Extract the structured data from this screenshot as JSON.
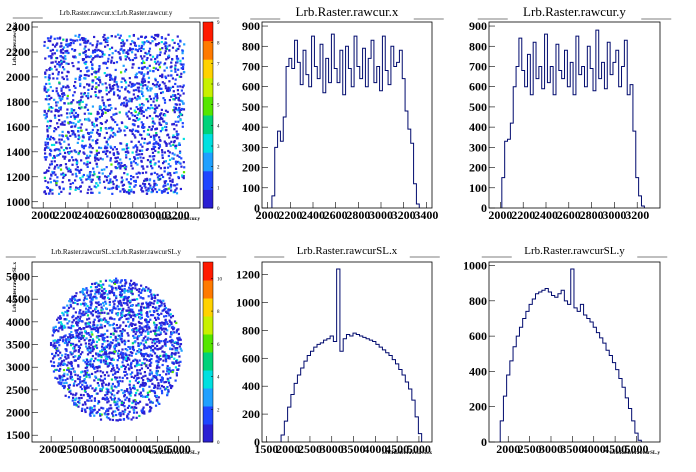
{
  "chart_data": [
    {
      "type": "heatmap",
      "title": "Lrb.Raster.rawcur.x:Lrb.Raster.rawcur.y",
      "xlabel": "Lrb.Raster.rawcur.y",
      "ylabel": "Lrb.Raster.rawcur.x",
      "x_ticks": [
        "2000",
        "2200",
        "2400",
        "2600",
        "2800",
        "3000",
        "3200"
      ],
      "y_ticks": [
        "1000",
        "1200",
        "1400",
        "1600",
        "1800",
        "2000",
        "2200",
        "2400"
      ],
      "xlim": [
        1900,
        3400
      ],
      "ylim": [
        950,
        2440
      ],
      "z_ticks": [
        "0",
        "1",
        "2",
        "3",
        "4",
        "5",
        "6",
        "7",
        "8",
        "9"
      ],
      "zlim": [
        0,
        9
      ],
      "shape": "square",
      "region": {
        "xmin": 2000,
        "xmax": 3250,
        "ymin": 1070,
        "ymax": 2350
      }
    },
    {
      "type": "bar",
      "histogram": true,
      "title": "Lrb.Raster.rawcur.x",
      "x_ticks": [
        "2000",
        "2200",
        "2400",
        "2600",
        "2800",
        "3000",
        "3200",
        "3400"
      ],
      "y_ticks": [
        "0",
        "100",
        "200",
        "300",
        "400",
        "500",
        "600",
        "700",
        "800",
        "900"
      ],
      "xlim": [
        1950,
        3450
      ],
      "ylim": [
        0,
        920
      ],
      "x": [
        2050,
        2075,
        2100,
        2125,
        2150,
        2175,
        2200,
        2225,
        2250,
        2275,
        2300,
        2325,
        2350,
        2375,
        2400,
        2425,
        2450,
        2475,
        2500,
        2525,
        2550,
        2575,
        2600,
        2625,
        2650,
        2675,
        2700,
        2725,
        2750,
        2775,
        2800,
        2825,
        2850,
        2875,
        2900,
        2925,
        2950,
        2975,
        3000,
        3025,
        3050,
        3075,
        3100,
        3125,
        3150,
        3175,
        3200,
        3225,
        3250,
        3275,
        3300,
        3325
      ],
      "values": [
        60,
        300,
        380,
        330,
        450,
        700,
        740,
        690,
        830,
        720,
        610,
        780,
        660,
        600,
        850,
        700,
        640,
        810,
        570,
        740,
        620,
        860,
        690,
        620,
        780,
        560,
        800,
        690,
        600,
        850,
        700,
        640,
        790,
        600,
        740,
        830,
        620,
        700,
        580,
        850,
        680,
        610,
        800,
        700,
        720,
        780,
        640,
        480,
        390,
        320,
        120,
        20
      ]
    },
    {
      "type": "bar",
      "histogram": true,
      "title": "Lrb.Raster.rawcur.y",
      "x_ticks": [
        "2000",
        "2200",
        "2400",
        "2600",
        "2800",
        "3000",
        "3200"
      ],
      "y_ticks": [
        "0",
        "100",
        "200",
        "300",
        "400",
        "500",
        "600",
        "700",
        "800",
        "900"
      ],
      "xlim": [
        1900,
        3400
      ],
      "ylim": [
        0,
        920
      ],
      "x": [
        2025,
        2050,
        2075,
        2100,
        2125,
        2150,
        2175,
        2200,
        2225,
        2250,
        2275,
        2300,
        2325,
        2350,
        2375,
        2400,
        2425,
        2450,
        2475,
        2500,
        2525,
        2550,
        2575,
        2600,
        2625,
        2650,
        2675,
        2700,
        2725,
        2750,
        2775,
        2800,
        2825,
        2850,
        2875,
        2900,
        2925,
        2950,
        2975,
        3000,
        3025,
        3050,
        3075,
        3100,
        3125,
        3150,
        3175,
        3200,
        3225,
        3250
      ],
      "values": [
        150,
        330,
        340,
        420,
        600,
        700,
        840,
        680,
        600,
        760,
        560,
        820,
        640,
        700,
        590,
        860,
        620,
        700,
        560,
        810,
        680,
        640,
        780,
        600,
        720,
        560,
        850,
        660,
        700,
        600,
        800,
        690,
        580,
        880,
        640,
        720,
        590,
        820,
        660,
        720,
        780,
        600,
        700,
        830,
        560,
        610,
        380,
        150,
        60,
        10
      ]
    },
    {
      "type": "heatmap",
      "title": "Lrb.Raster.rawcurSL.x:Lrb.Raster.rawcurSL.y",
      "xlabel": "Lrb.Raster.rawcurSL.y",
      "ylabel": "Lrb.Raster.rawcurSL.x",
      "x_ticks": [
        "2000",
        "2500",
        "3000",
        "3500",
        "4000",
        "4500",
        "5000"
      ],
      "y_ticks": [
        "1500",
        "2000",
        "2500",
        "3000",
        "3500",
        "4000",
        "4500",
        "5000"
      ],
      "xlim": [
        1550,
        5500
      ],
      "ylim": [
        1350,
        5320
      ],
      "z_ticks": [
        "0",
        "2",
        "4",
        "6",
        "8",
        "10"
      ],
      "zlim": [
        0,
        11
      ],
      "shape": "circle",
      "region": {
        "cx": 3500,
        "cy": 3400,
        "r": 1550
      }
    },
    {
      "type": "bar",
      "histogram": true,
      "title": "Lrb.Raster.rawcurSL.x",
      "xlabel": "Lrb.Raster.rawcurSL.x",
      "x_ticks": [
        "1500",
        "2000",
        "2500",
        "3000",
        "3500",
        "4000",
        "4500",
        "5000"
      ],
      "y_ticks": [
        "0",
        "200",
        "400",
        "600",
        "800",
        "1000",
        "1200"
      ],
      "xlim": [
        1400,
        5300
      ],
      "ylim": [
        0,
        1290
      ],
      "x": [
        1875,
        1950,
        2025,
        2100,
        2175,
        2250,
        2325,
        2400,
        2475,
        2550,
        2625,
        2700,
        2775,
        2850,
        2925,
        3000,
        3075,
        3150,
        3225,
        3300,
        3375,
        3450,
        3525,
        3600,
        3675,
        3750,
        3825,
        3900,
        3975,
        4050,
        4125,
        4200,
        4275,
        4350,
        4425,
        4500,
        4575,
        4650,
        4725,
        4800,
        4875,
        4950,
        5025
      ],
      "values": [
        50,
        150,
        250,
        340,
        420,
        480,
        530,
        580,
        620,
        650,
        680,
        700,
        710,
        730,
        740,
        760,
        720,
        1240,
        650,
        740,
        770,
        760,
        780,
        770,
        760,
        750,
        740,
        730,
        720,
        700,
        680,
        660,
        640,
        620,
        590,
        560,
        520,
        480,
        430,
        380,
        300,
        180,
        60
      ]
    },
    {
      "type": "bar",
      "histogram": true,
      "title": "Lrb.Raster.rawcurSL.y",
      "xlabel": "Lrb.Raster.rawcurSL.y",
      "x_ticks": [
        "2000",
        "2500",
        "3000",
        "3500",
        "4000",
        "4500",
        "5000"
      ],
      "y_ticks": [
        "0",
        "200",
        "400",
        "600",
        "800",
        "1000"
      ],
      "xlim": [
        1550,
        5550
      ],
      "ylim": [
        0,
        1020
      ],
      "x": [
        1850,
        1925,
        2000,
        2075,
        2150,
        2225,
        2300,
        2375,
        2450,
        2525,
        2600,
        2675,
        2750,
        2825,
        2900,
        2975,
        3050,
        3125,
        3200,
        3275,
        3350,
        3425,
        3500,
        3575,
        3650,
        3725,
        3800,
        3875,
        3950,
        4025,
        4100,
        4175,
        4250,
        4325,
        4400,
        4475,
        4550,
        4625,
        4700,
        4775,
        4850,
        4925,
        5000,
        5075
      ],
      "values": [
        120,
        260,
        380,
        460,
        540,
        600,
        650,
        700,
        740,
        780,
        810,
        840,
        850,
        860,
        870,
        850,
        830,
        820,
        840,
        860,
        800,
        780,
        980,
        760,
        740,
        780,
        720,
        700,
        680,
        650,
        620,
        590,
        560,
        520,
        490,
        450,
        410,
        360,
        310,
        250,
        190,
        120,
        50,
        10
      ]
    }
  ]
}
